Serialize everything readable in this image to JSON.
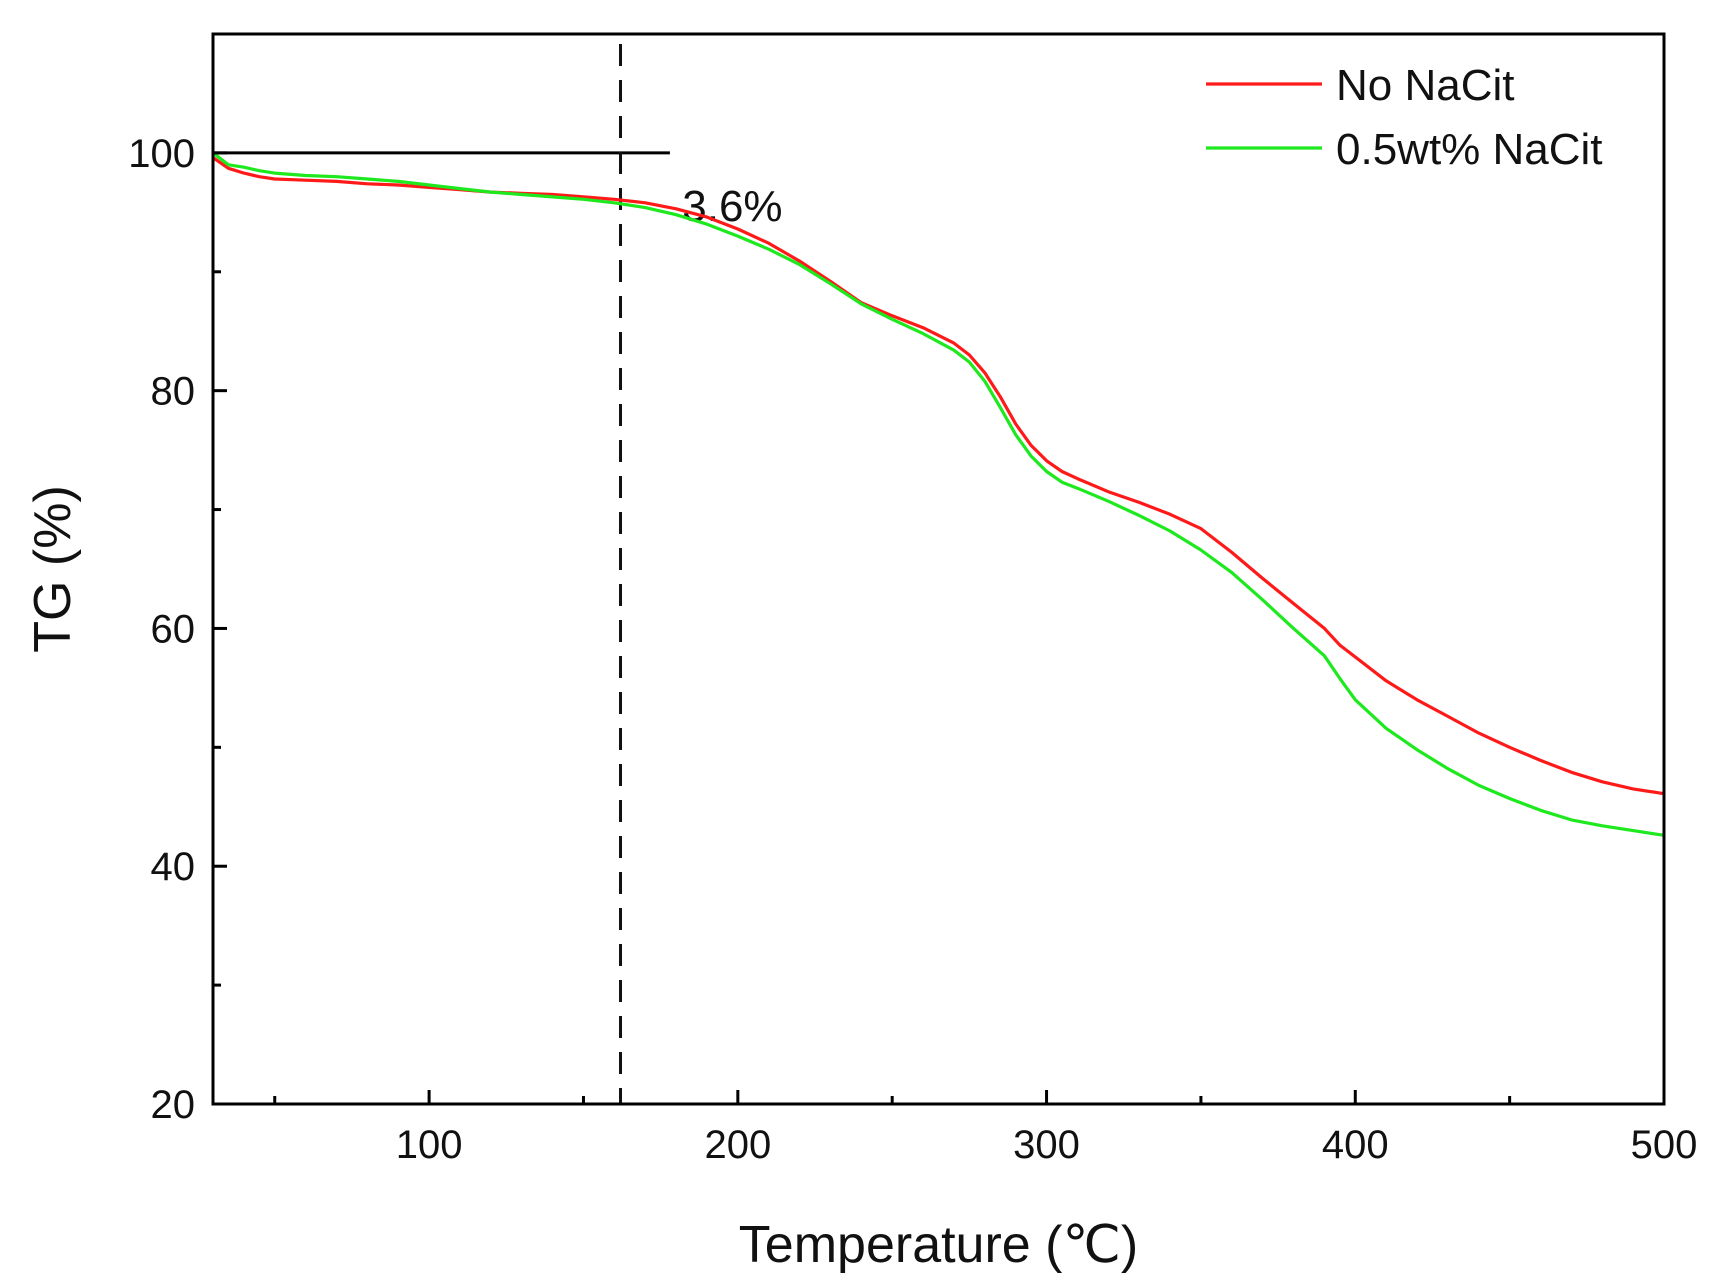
{
  "chart_data": {
    "type": "line",
    "title": "",
    "xlabel": "Temperature (℃)",
    "ylabel": "TG (%)",
    "xlim": [
      30,
      500
    ],
    "ylim": [
      20,
      110
    ],
    "xticks": [
      100,
      200,
      300,
      400,
      500
    ],
    "yticks": [
      20,
      40,
      60,
      80,
      100
    ],
    "x_minor_ticks": [
      50,
      150,
      250,
      350,
      450
    ],
    "y_minor_ticks": [
      30,
      50,
      70,
      90
    ],
    "grid": false,
    "legend_position": "top-right",
    "series": [
      {
        "name": "No NaCit",
        "color": "#ff1a1a",
        "x": [
          30,
          35,
          40,
          45,
          50,
          60,
          70,
          80,
          90,
          100,
          110,
          120,
          130,
          140,
          150,
          160,
          170,
          180,
          190,
          200,
          210,
          220,
          230,
          240,
          250,
          260,
          270,
          275,
          280,
          285,
          290,
          295,
          300,
          305,
          310,
          320,
          330,
          340,
          350,
          360,
          370,
          380,
          390,
          395,
          400,
          410,
          420,
          430,
          440,
          450,
          460,
          470,
          480,
          490,
          500
        ],
        "y": [
          99.6,
          98.7,
          98.3,
          98.0,
          97.8,
          97.7,
          97.6,
          97.4,
          97.3,
          97.1,
          96.9,
          96.7,
          96.6,
          96.5,
          96.3,
          96.1,
          95.8,
          95.3,
          94.6,
          93.6,
          92.4,
          90.9,
          89.2,
          87.4,
          86.3,
          85.3,
          84.0,
          83.0,
          81.5,
          79.5,
          77.2,
          75.4,
          74.1,
          73.2,
          72.6,
          71.5,
          70.6,
          69.6,
          68.4,
          66.4,
          64.2,
          62.1,
          60.0,
          58.6,
          57.6,
          55.6,
          54.0,
          52.6,
          51.2,
          50.0,
          48.9,
          47.9,
          47.1,
          46.5,
          46.1
        ]
      },
      {
        "name": "0.5wt% NaCit",
        "color": "#1ee81e",
        "x": [
          30,
          35,
          40,
          45,
          50,
          60,
          70,
          80,
          90,
          100,
          110,
          120,
          130,
          140,
          150,
          160,
          170,
          180,
          190,
          200,
          210,
          220,
          230,
          240,
          250,
          260,
          270,
          275,
          280,
          285,
          290,
          295,
          300,
          305,
          310,
          320,
          330,
          340,
          350,
          360,
          370,
          380,
          390,
          395,
          400,
          410,
          420,
          430,
          440,
          450,
          460,
          470,
          480,
          490,
          500
        ],
        "y": [
          100.0,
          99.0,
          98.8,
          98.5,
          98.3,
          98.1,
          98.0,
          97.8,
          97.6,
          97.3,
          97.0,
          96.7,
          96.5,
          96.3,
          96.1,
          95.8,
          95.4,
          94.8,
          94.0,
          93.0,
          91.9,
          90.6,
          89.0,
          87.3,
          86.0,
          84.8,
          83.4,
          82.4,
          80.8,
          78.6,
          76.3,
          74.5,
          73.2,
          72.3,
          71.8,
          70.7,
          69.5,
          68.2,
          66.6,
          64.7,
          62.4,
          60.0,
          57.7,
          55.8,
          54.0,
          51.6,
          49.8,
          48.2,
          46.8,
          45.7,
          44.7,
          43.9,
          43.4,
          43.0,
          42.6
        ]
      }
    ],
    "annotations": [
      {
        "text": "3.6%",
        "type": "label",
        "x": 182,
        "y": 96.8
      },
      {
        "type": "hline",
        "y": 100,
        "x_start": 30,
        "x_end": 178
      },
      {
        "type": "vline_dashed",
        "x": 162
      }
    ]
  }
}
